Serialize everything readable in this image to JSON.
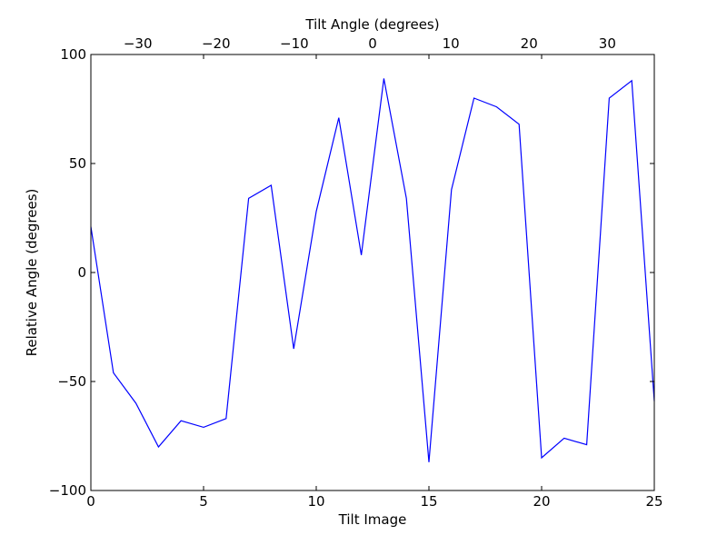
{
  "chart_data": {
    "type": "line",
    "xlabel": "Tilt Image",
    "ylabel": "Relative Angle (degrees)",
    "top_xlabel": "Tilt Angle (degrees)",
    "xlim": [
      0,
      25
    ],
    "ylim": [
      -100,
      100
    ],
    "top_xlim": [
      -36,
      36
    ],
    "grid": false,
    "legend": "none",
    "colors": {
      "line": "#0000ff",
      "axes": "#000000",
      "background": "#ffffff"
    },
    "x_ticks": [
      0,
      5,
      10,
      15,
      20,
      25
    ],
    "x_tick_labels": [
      "0",
      "5",
      "10",
      "15",
      "20",
      "25"
    ],
    "y_ticks": [
      -100,
      -50,
      0,
      50,
      100
    ],
    "y_tick_labels": [
      "−100",
      "−50",
      "0",
      "50",
      "100"
    ],
    "top_ticks": [
      -30,
      -20,
      -10,
      0,
      10,
      20,
      30
    ],
    "top_tick_labels": [
      "−30",
      "−20",
      "−10",
      "0",
      "10",
      "20",
      "30"
    ],
    "series": [
      {
        "x": [
          0,
          1,
          2,
          3,
          4,
          5,
          6,
          7,
          8,
          9,
          10,
          11,
          12,
          13,
          14,
          15,
          16,
          17,
          18,
          19,
          20,
          21,
          22,
          23,
          24,
          25
        ],
        "values": [
          21,
          -46,
          -60,
          -80,
          -68,
          -71,
          -67,
          34,
          40,
          -35,
          28,
          71,
          8,
          89,
          34,
          -87,
          38,
          80,
          76,
          68,
          -85,
          -76,
          -79,
          80,
          88,
          -59
        ]
      }
    ]
  }
}
